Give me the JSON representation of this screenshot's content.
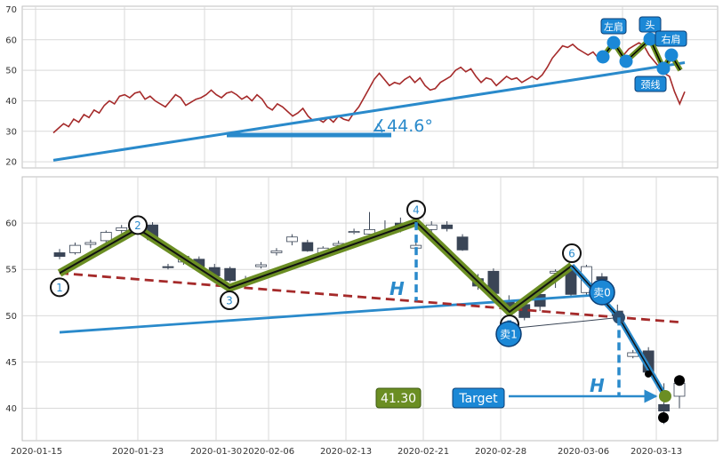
{
  "chart_data": [
    {
      "type": "line",
      "panel": "overview",
      "ylim": [
        18,
        71
      ],
      "yticks": [
        20,
        30,
        40,
        50,
        60,
        70
      ],
      "series": [
        {
          "values": [
            29.5,
            31,
            32.5,
            31.5,
            34,
            33,
            35.5,
            34.5,
            37,
            36,
            38.5,
            40,
            39,
            41.5,
            42,
            41,
            42.5,
            43,
            40.5,
            41.5,
            40,
            39,
            38,
            40,
            42,
            41,
            38.5,
            39.5,
            40.5,
            41,
            42,
            43.5,
            42,
            41,
            42.5,
            43,
            42,
            40.5,
            41.5,
            40,
            42,
            40.5,
            38,
            37,
            39,
            38,
            36.5,
            35,
            36,
            37.5,
            35,
            33.5,
            34,
            33,
            34.5,
            33,
            35,
            34,
            33.5,
            36,
            38,
            41,
            44,
            47,
            49,
            47,
            45,
            46,
            45.5,
            47,
            48,
            46,
            47.5,
            45,
            43.5,
            44,
            46,
            47,
            48,
            50,
            51,
            49.5,
            50.5,
            48,
            46,
            47.5,
            47,
            45,
            46.5,
            48,
            47,
            47.5,
            46,
            47,
            48,
            47,
            48.5,
            51,
            54,
            56,
            58,
            57.5,
            58.5,
            57,
            56,
            55,
            56,
            54,
            55.5,
            57,
            58,
            56.5,
            55,
            57,
            58,
            59,
            58,
            55,
            53,
            51,
            49,
            48,
            43,
            39,
            43
          ]
        }
      ],
      "trendline": {
        "x": [
          0,
          1
        ],
        "y": [
          20.5,
          52.5
        ]
      },
      "angle_label": "∡44.6°",
      "hs_labels": [
        "左肩",
        "头",
        "右肩",
        "颈线"
      ]
    },
    {
      "type": "candlestick",
      "panel": "detail",
      "ylim": [
        36.5,
        65
      ],
      "yticks": [
        40,
        45,
        50,
        55,
        60
      ],
      "xticks": [
        "2020-01-15",
        "2020-01-23",
        "2020-01-30",
        "2020-02-06",
        "2020-02-13",
        "2020-02-21",
        "2020-02-28",
        "2020-03-06",
        "2020-03-13"
      ],
      "candles": [
        [
          56.8,
          57.2,
          56.1,
          56.4
        ],
        [
          56.8,
          57.9,
          56.6,
          57.6
        ],
        [
          57.7,
          58.2,
          57.3,
          57.9
        ],
        [
          58.1,
          59.2,
          57.8,
          59.0
        ],
        [
          59.2,
          59.8,
          58.9,
          59.5
        ],
        [
          60.2,
          60.5,
          59.5,
          59.8
        ],
        [
          59.8,
          60.1,
          58.0,
          58.2
        ],
        [
          55.3,
          55.6,
          55.0,
          55.2
        ],
        [
          55.8,
          56.6,
          55.5,
          56.4
        ],
        [
          56.1,
          56.4,
          55.1,
          55.3
        ],
        [
          55.2,
          55.6,
          54.0,
          54.3
        ],
        [
          55.1,
          55.3,
          53.6,
          53.8
        ],
        [
          53.8,
          54.3,
          53.3,
          53.7
        ],
        [
          55.3,
          55.8,
          55.1,
          55.5
        ],
        [
          56.8,
          57.3,
          56.5,
          57.0
        ],
        [
          58.0,
          58.8,
          57.6,
          58.5
        ],
        [
          57.9,
          58.2,
          56.9,
          57.0
        ],
        [
          56.7,
          57.5,
          56.3,
          57.3
        ],
        [
          57.6,
          58.1,
          57.1,
          57.8
        ],
        [
          59.0,
          59.4,
          58.8,
          59.1
        ],
        [
          58.8,
          61.2,
          58.5,
          59.3
        ],
        [
          59.1,
          60.3,
          58.6,
          59.0
        ],
        [
          60.0,
          60.6,
          59.0,
          59.3
        ],
        [
          57.3,
          57.9,
          56.9,
          57.6
        ],
        [
          59.3,
          60.2,
          59.0,
          59.8
        ],
        [
          59.8,
          60.2,
          59.1,
          59.4
        ],
        [
          58.5,
          58.8,
          57.0,
          57.1
        ],
        [
          54.0,
          54.5,
          52.8,
          53.2
        ],
        [
          54.8,
          55.1,
          52.0,
          52.4
        ],
        [
          51.5,
          52.2,
          50.3,
          50.7
        ],
        [
          51.2,
          51.6,
          49.5,
          49.8
        ],
        [
          52.3,
          52.6,
          50.5,
          51.0
        ],
        [
          54.6,
          55.0,
          53.0,
          54.8
        ],
        [
          54.9,
          55.5,
          52.1,
          52.3
        ],
        [
          52.5,
          55.5,
          52.2,
          55.3
        ],
        [
          54.2,
          54.6,
          53.6,
          53.9
        ],
        [
          50.5,
          51.2,
          49.8,
          50.0
        ],
        [
          45.6,
          46.3,
          45.4,
          46.0
        ],
        [
          46.2,
          46.6,
          43.7,
          43.9
        ],
        [
          40.4,
          42.7,
          38.3,
          39.7
        ],
        [
          41.3,
          43.2,
          40.0,
          42.7
        ]
      ],
      "pattern_points": {
        "labels": [
          "1",
          "2",
          "3",
          "4",
          "5",
          "6"
        ],
        "values": [
          54.6,
          59.4,
          53.0,
          60.1,
          50.4,
          55.4
        ]
      },
      "trendline": {
        "y_start": 48.2,
        "y_end": 52.3
      },
      "neckline": {
        "y_start": 54.6,
        "y_end": 49.3
      },
      "sell_labels": [
        "卖0",
        "卖1"
      ],
      "height_marker": "H",
      "target_label": "Target",
      "target_value": "41.30",
      "target_y": 41.3,
      "breakout_y": 49.8
    }
  ],
  "colors": {
    "price_line": "#a52a2a",
    "trend": "#2a8acb",
    "neckline": "#a52a2a",
    "pattern_fill": "#6b8e23",
    "up_candle": "#ffffff",
    "down_candle": "#3a4556",
    "badge": "#1b88d6",
    "value_badge": "#6b8e23"
  }
}
